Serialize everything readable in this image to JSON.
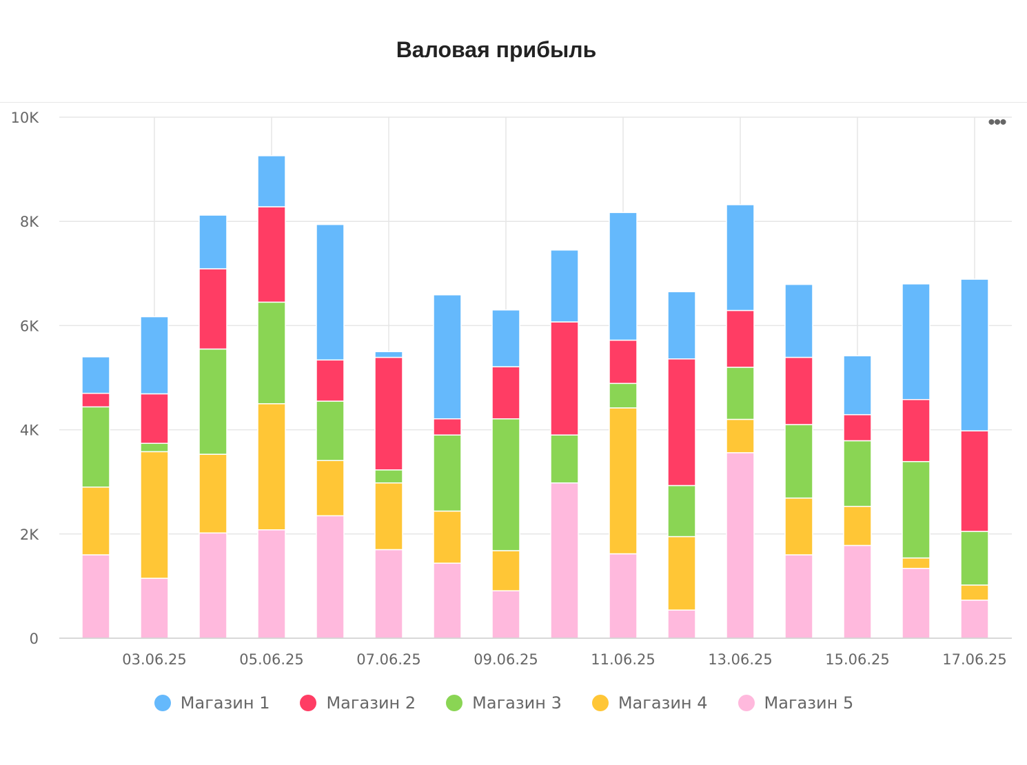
{
  "chart_data": {
    "type": "bar",
    "stacked": true,
    "title": "Валовая прибыль",
    "xlabel": "",
    "ylabel": "",
    "ylim": [
      0,
      10000
    ],
    "y_ticks": [
      0,
      2000,
      4000,
      6000,
      8000,
      10000
    ],
    "y_tick_labels": [
      "0",
      "2K",
      "4K",
      "6K",
      "8K",
      "10K"
    ],
    "categories": [
      "02.06.25",
      "03.06.25",
      "04.06.25",
      "05.06.25",
      "06.06.25",
      "07.06.25",
      "08.06.25",
      "09.06.25",
      "10.06.25",
      "11.06.25",
      "12.06.25",
      "13.06.25",
      "14.06.25",
      "15.06.25",
      "16.06.25",
      "17.06.25"
    ],
    "shown_x_labels": [
      "03.06.25",
      "05.06.25",
      "07.06.25",
      "09.06.25",
      "11.06.25",
      "13.06.25",
      "15.06.25",
      "17.06.25"
    ],
    "grid": true,
    "legend_position": "bottom",
    "series": [
      {
        "name": "Магазин 5",
        "color": "#ffb9dd",
        "values": [
          1600,
          1150,
          2020,
          2080,
          2350,
          1700,
          1440,
          910,
          2980,
          1620,
          540,
          3560,
          1600,
          1780,
          1340,
          730
        ]
      },
      {
        "name": "Магазин 4",
        "color": "#ffc636",
        "values": [
          1300,
          2430,
          1510,
          2420,
          1060,
          1280,
          1000,
          770,
          0,
          2800,
          1410,
          640,
          1090,
          750,
          200,
          290
        ]
      },
      {
        "name": "Магазин 3",
        "color": "#8ad554",
        "values": [
          1540,
          160,
          2020,
          1950,
          1140,
          250,
          1460,
          2530,
          920,
          470,
          980,
          1000,
          1410,
          1260,
          1850,
          1030
        ]
      },
      {
        "name": "Магазин 2",
        "color": "#ff3d64",
        "values": [
          260,
          950,
          1540,
          1830,
          790,
          2160,
          310,
          1000,
          2170,
          830,
          2430,
          1090,
          1290,
          500,
          1190,
          1930
        ]
      },
      {
        "name": "Магазин 1",
        "color": "#65b9fc",
        "values": [
          700,
          1480,
          1030,
          980,
          2600,
          110,
          2380,
          1090,
          1380,
          2450,
          1290,
          2030,
          1400,
          1130,
          2220,
          2910
        ]
      }
    ]
  },
  "legend": [
    {
      "label": "Магазин 1",
      "color": "#65b9fc"
    },
    {
      "label": "Магазин 2",
      "color": "#ff3d64"
    },
    {
      "label": "Магазин 3",
      "color": "#8ad554"
    },
    {
      "label": "Магазин 4",
      "color": "#ffc636"
    },
    {
      "label": "Магазин 5",
      "color": "#ffb9dd"
    }
  ],
  "menu_icon": "more-dots-icon",
  "menu_glyph": "•••"
}
